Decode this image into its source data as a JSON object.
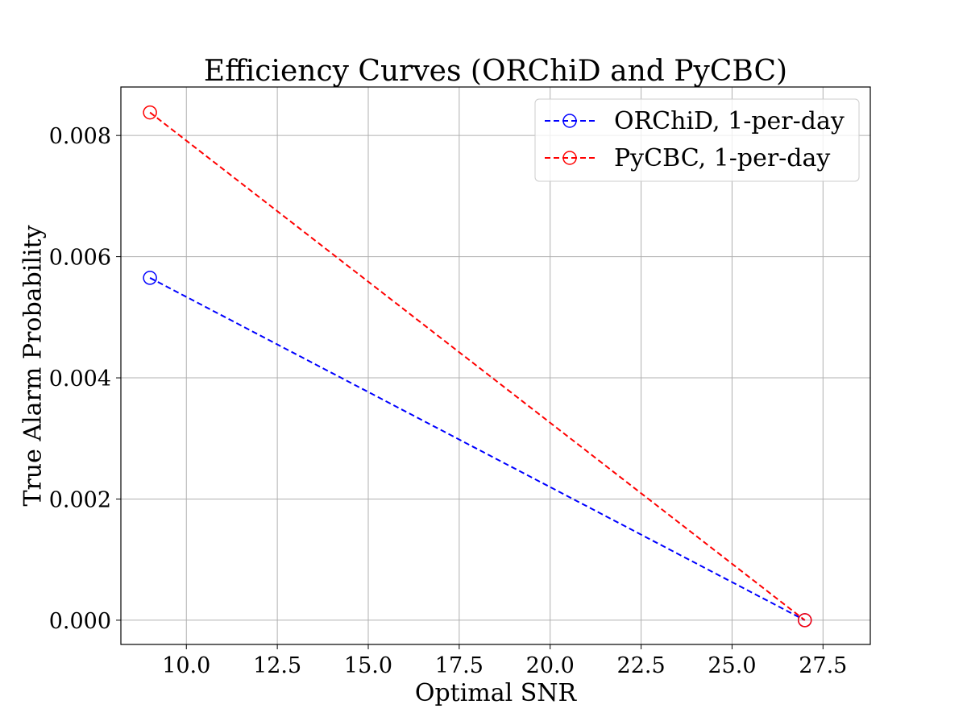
{
  "chart_data": {
    "type": "line",
    "title": "Efficiency Curves (ORChiD and PyCBC)",
    "xlabel": "Optimal SNR",
    "ylabel": "True Alarm Probability",
    "xlim": [
      8.2,
      28.8
    ],
    "ylim": [
      -0.0004,
      0.0088
    ],
    "xticks": [
      10.0,
      12.5,
      15.0,
      17.5,
      20.0,
      22.5,
      25.0,
      27.5
    ],
    "xtick_labels": [
      "10.0",
      "12.5",
      "15.0",
      "17.5",
      "20.0",
      "22.5",
      "25.0",
      "27.5"
    ],
    "yticks": [
      0.0,
      0.002,
      0.004,
      0.006,
      0.008
    ],
    "ytick_labels": [
      "0.000",
      "0.002",
      "0.004",
      "0.006",
      "0.008"
    ],
    "grid": true,
    "legend_position": "top-right",
    "series": [
      {
        "name": "ORChiD, 1-per-day",
        "color": "#0000ff",
        "linestyle": "dashed",
        "marker": "open-circle",
        "x": [
          9,
          27
        ],
        "y": [
          0.00565,
          0.0
        ]
      },
      {
        "name": "PyCBC, 1-per-day",
        "color": "#ff0000",
        "linestyle": "dashed",
        "marker": "open-circle",
        "x": [
          9,
          27
        ],
        "y": [
          0.00838,
          0.0
        ]
      }
    ]
  }
}
